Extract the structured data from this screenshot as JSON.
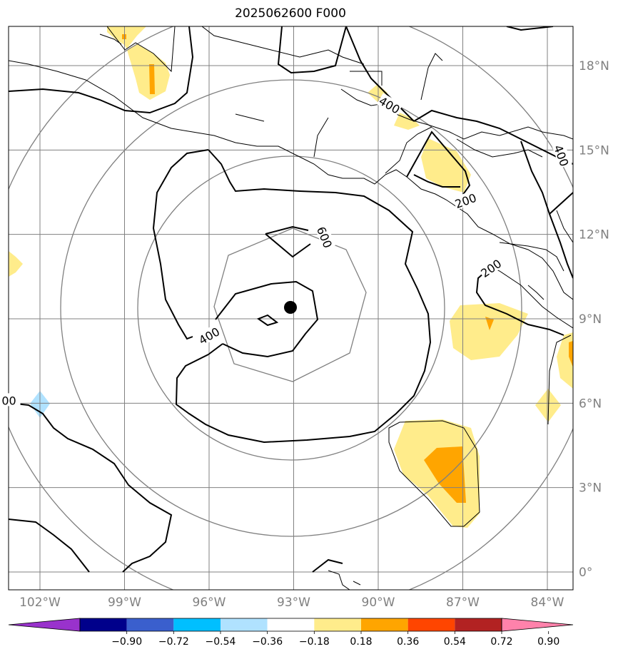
{
  "title": "2025062600 F000",
  "lon_ticks": [
    {
      "value": -102,
      "label": "102°W"
    },
    {
      "value": -99,
      "label": "99°W"
    },
    {
      "value": -96,
      "label": "96°W"
    },
    {
      "value": -93,
      "label": "93°W"
    },
    {
      "value": -90,
      "label": "90°W"
    },
    {
      "value": -87,
      "label": "87°W"
    },
    {
      "value": -84,
      "label": "84°W"
    }
  ],
  "lat_ticks": [
    {
      "value": 18,
      "label": "18°N"
    },
    {
      "value": 15,
      "label": "15°N"
    },
    {
      "value": 12,
      "label": "12°N"
    },
    {
      "value": 9,
      "label": "9°N"
    },
    {
      "value": 6,
      "label": "6°N"
    },
    {
      "value": 3,
      "label": "3°N"
    },
    {
      "value": 0,
      "label": "0°"
    }
  ],
  "center_marker": {
    "lon": -93.0,
    "lat": 9.4
  },
  "contour_labels": [
    {
      "text": "600",
      "lon": -91.9,
      "lat": 11.9
    },
    {
      "text": "400",
      "lon": -96.0,
      "lat": 8.4
    },
    {
      "text": "400",
      "lon": -89.6,
      "lat": 16.6
    },
    {
      "text": "200",
      "lon": -86.9,
      "lat": 13.2
    },
    {
      "text": "200",
      "lon": -86.0,
      "lat": 10.8
    },
    {
      "text": "400",
      "lon": -83.5,
      "lat": 14.8
    },
    {
      "text": "00",
      "lon": -103.1,
      "lat": 6.1
    }
  ],
  "colorbar": {
    "colors": [
      "#9932cc",
      "#00008b",
      "#3a5fcd",
      "#00bfff",
      "#b0e2ff",
      "#ffffff",
      "#ffec8b",
      "#ffa500",
      "#ff4500",
      "#b22222",
      "#ff82ab"
    ],
    "labels": [
      "−0.90",
      "−0.72",
      "−0.54",
      "−0.36",
      "−0.18",
      "0.18",
      "0.36",
      "0.54",
      "0.72",
      "0.90"
    ]
  },
  "colors": {
    "grid": "#808080",
    "contour": "#000000",
    "coastline": "#000000",
    "shade_light": "#ffec8b",
    "shade_orange": "#ffa500",
    "shade_lightblue": "#b0e2ff"
  }
}
